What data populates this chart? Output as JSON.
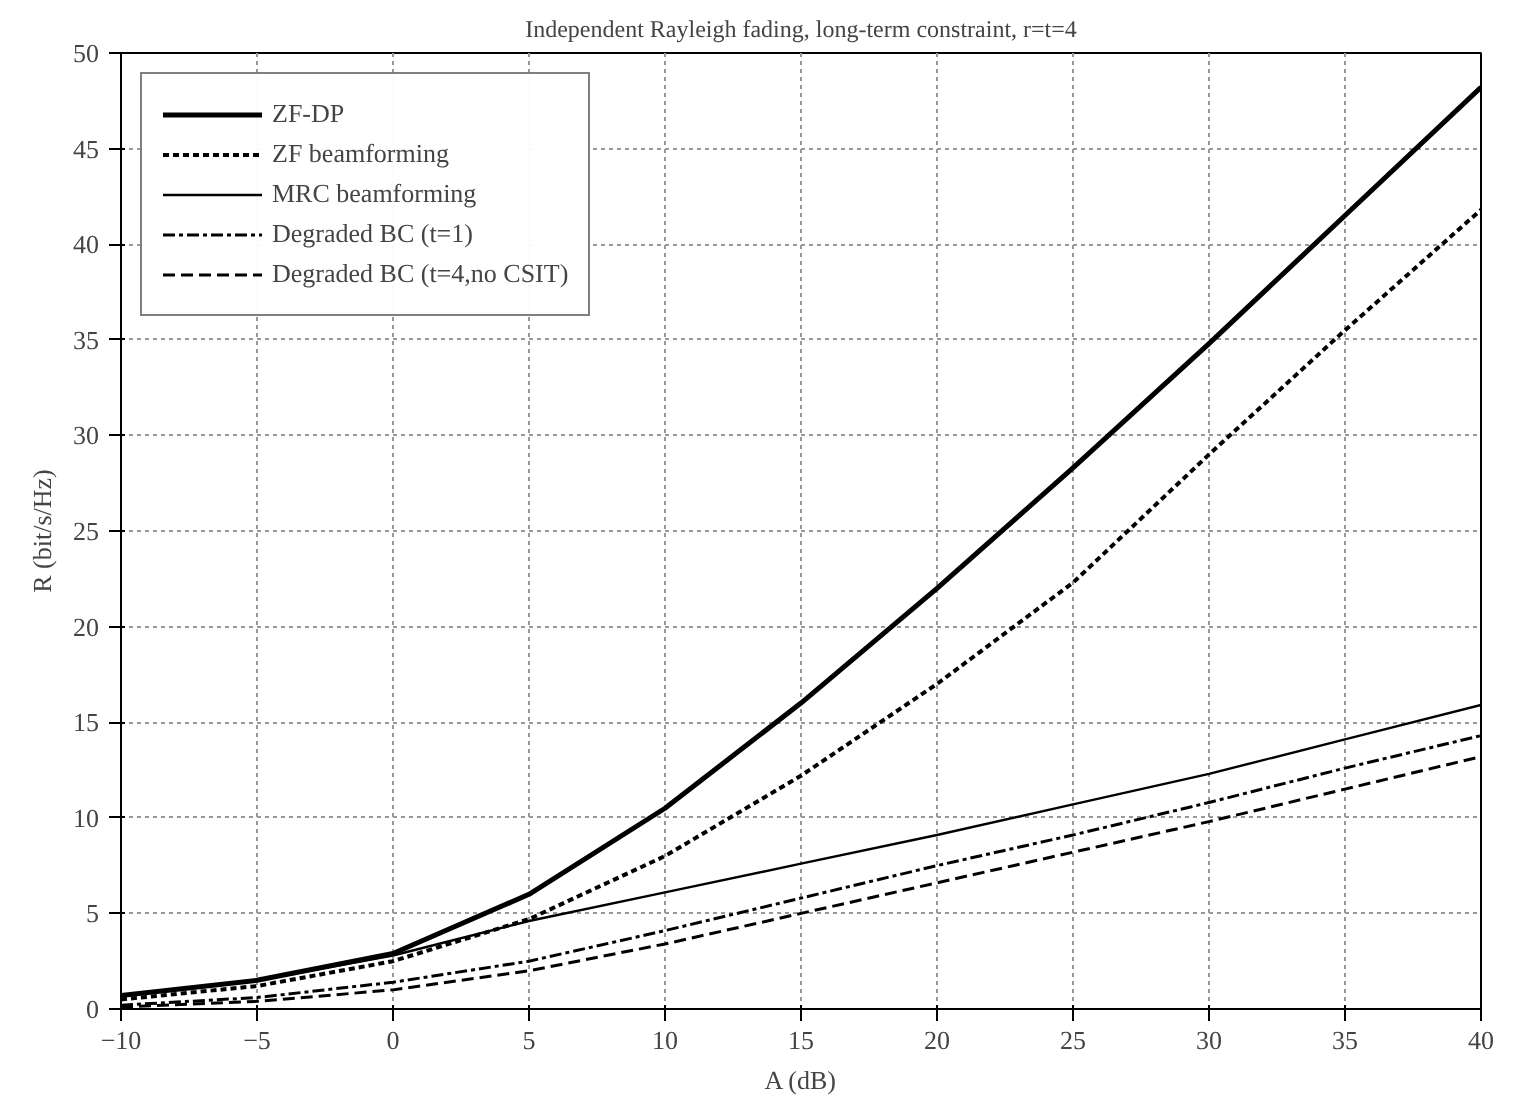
{
  "chart_data": {
    "type": "line",
    "title": "Independent Rayleigh fading, long-term constraint, r=t=4",
    "xlabel": "A (dB)",
    "ylabel": "R (bit/s/Hz)",
    "x": [
      -10,
      -5,
      0,
      5,
      10,
      15,
      20,
      25,
      30,
      35,
      40
    ],
    "series": [
      {
        "name": "ZF-DP",
        "color": "#000000",
        "line_style": "solid",
        "values": [
          0.7,
          1.5,
          2.9,
          6,
          10.5,
          16,
          22,
          28.3,
          34.8,
          41.5,
          48.2
        ]
      },
      {
        "name": "ZF beamforming",
        "color": "#000000",
        "line_style": "dotted",
        "values": [
          0.5,
          1.2,
          2.5,
          4.7,
          8,
          12.2,
          17,
          22.3,
          29,
          35.5,
          41.8
        ]
      },
      {
        "name": "MRC beamforming",
        "color": "#000000",
        "line_style": "solid",
        "values": [
          0.7,
          1.5,
          2.8,
          4.6,
          6.1,
          7.6,
          9.1,
          10.7,
          12.3,
          14.1,
          15.9
        ]
      },
      {
        "name": "Degraded BC (t=1)",
        "color": "#000000",
        "line_style": "dashdot",
        "values": [
          0.2,
          0.6,
          1.4,
          2.5,
          4.1,
          5.8,
          7.5,
          9.1,
          10.8,
          12.6,
          14.3
        ]
      },
      {
        "name": "Degraded BC (t=4,no CSIT)",
        "color": "#000000",
        "line_style": "dashed",
        "values": [
          0.1,
          0.4,
          1.0,
          2.0,
          3.4,
          5.0,
          6.6,
          8.2,
          9.8,
          11.5,
          13.2
        ]
      }
    ],
    "xlim": [
      -10,
      40
    ],
    "ylim": [
      0,
      50
    ],
    "xticks": [
      -10,
      -5,
      0,
      5,
      10,
      15,
      20,
      25,
      30,
      35,
      40
    ],
    "yticks": [
      0,
      5,
      10,
      15,
      20,
      25,
      30,
      35,
      40,
      45,
      50
    ],
    "grid": true,
    "legend": "top left",
    "marker": "none"
  }
}
